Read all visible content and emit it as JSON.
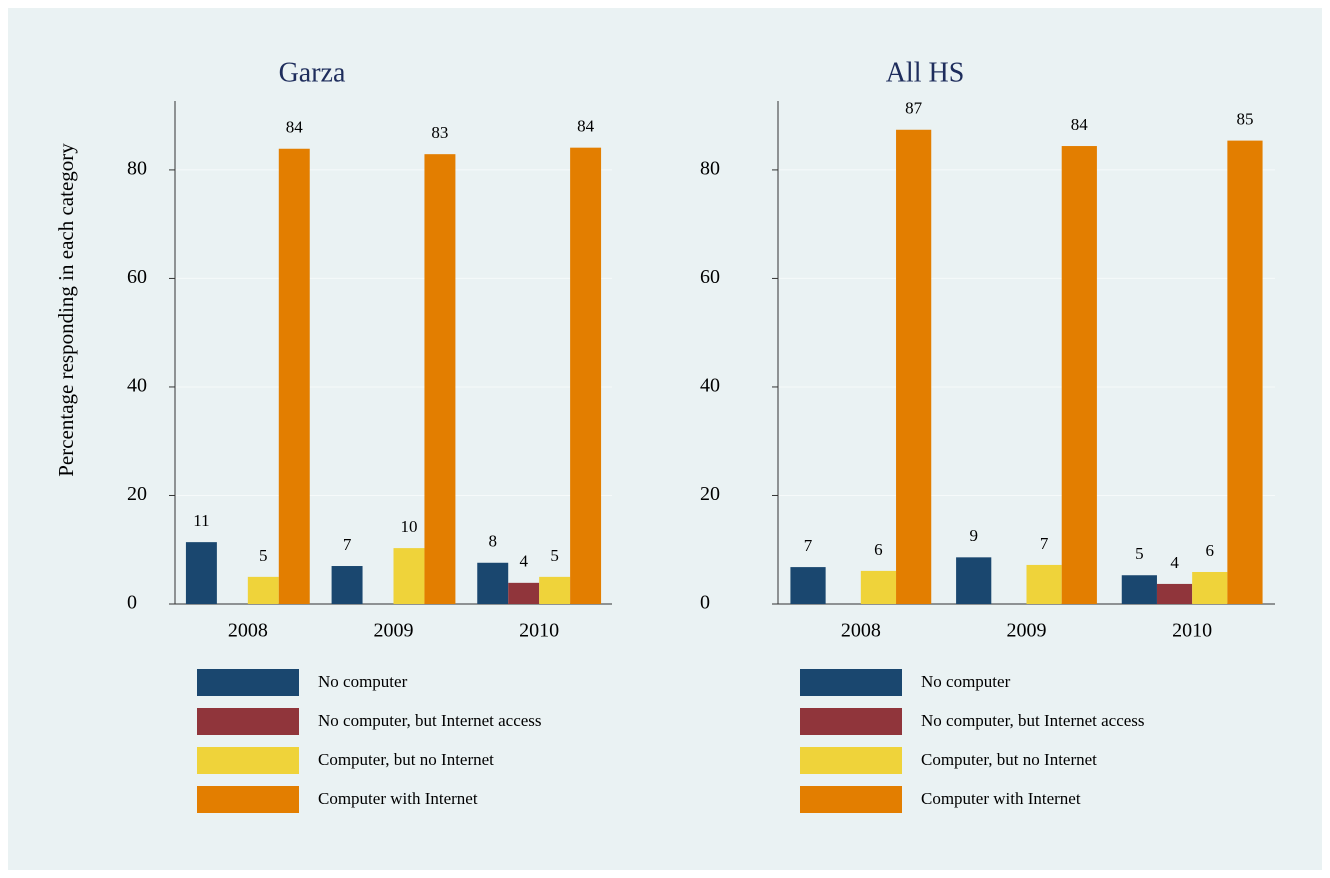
{
  "chart_data": [
    {
      "type": "bar",
      "title": "Garza",
      "ylabel": "Percentage responding in each category",
      "categories": [
        "2008",
        "2009",
        "2010"
      ],
      "series": [
        {
          "name": "No computer",
          "color": "#1a476f",
          "values": [
            11.4,
            7,
            7.6
          ],
          "value_labels": [
            "11",
            "7",
            "8"
          ]
        },
        {
          "name": "No computer, but Internet access",
          "color": "#90353b",
          "values": [
            null,
            null,
            3.9
          ],
          "value_labels": [
            null,
            null,
            "4"
          ]
        },
        {
          "name": "Computer, but no Internet",
          "color": "#efd33a",
          "values": [
            5,
            10.3,
            5
          ],
          "value_labels": [
            "5",
            "10",
            "5"
          ]
        },
        {
          "name": "Computer with Internet",
          "color": "#e37e00",
          "values": [
            83.9,
            82.9,
            84.1
          ],
          "value_labels": [
            "84",
            "83",
            "84"
          ]
        }
      ],
      "ylim": [
        0,
        92.7
      ],
      "yticks": [
        0,
        20,
        40,
        60,
        80
      ],
      "grid": true
    },
    {
      "type": "bar",
      "title": "All HS",
      "categories": [
        "2008",
        "2009",
        "2010"
      ],
      "series": [
        {
          "name": "No computer",
          "color": "#1a476f",
          "values": [
            6.8,
            8.6,
            5.3
          ],
          "value_labels": [
            "7",
            "9",
            "5"
          ]
        },
        {
          "name": "No computer, but Internet access",
          "color": "#90353b",
          "values": [
            null,
            null,
            3.7
          ],
          "value_labels": [
            null,
            null,
            "4"
          ]
        },
        {
          "name": "Computer, but no Internet",
          "color": "#efd33a",
          "values": [
            6.1,
            7.2,
            5.9
          ],
          "value_labels": [
            "6",
            "7",
            "6"
          ]
        },
        {
          "name": "Computer with Internet",
          "color": "#e37e00",
          "values": [
            87.4,
            84.4,
            85.4
          ],
          "value_labels": [
            "87",
            "84",
            "85"
          ]
        }
      ],
      "ylim": [
        0,
        92.7
      ],
      "yticks": [
        0,
        20,
        40,
        60,
        80
      ],
      "grid": true
    }
  ]
}
